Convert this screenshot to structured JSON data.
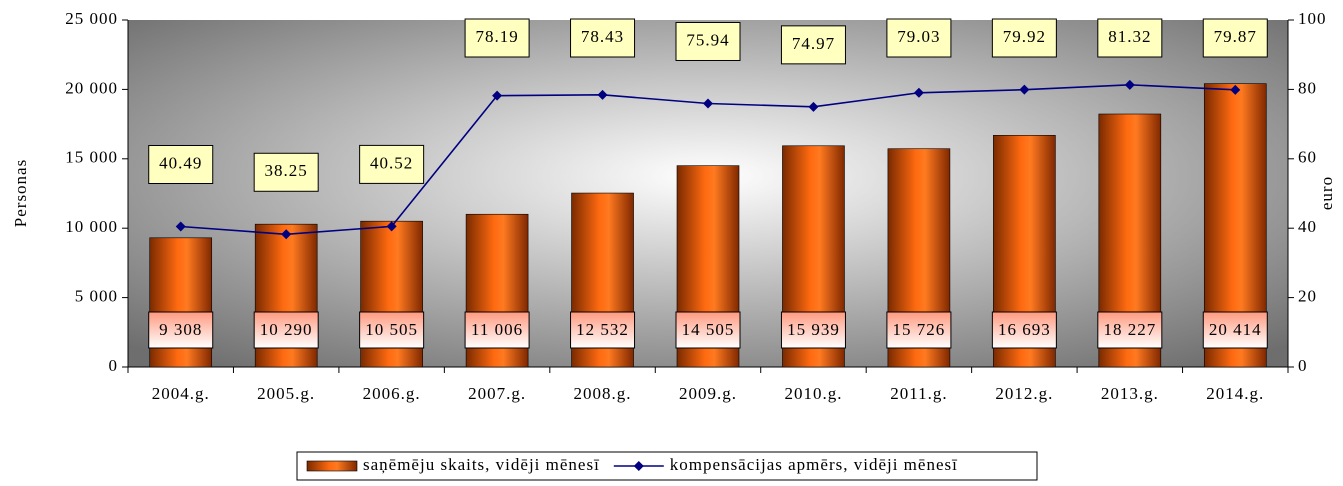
{
  "chart_data": {
    "type": "bar",
    "categories": [
      "2004.g.",
      "2005.g.",
      "2006.g.",
      "2007.g.",
      "2008.g.",
      "2009.g.",
      "2010.g.",
      "2011.g.",
      "2012.g.",
      "2013.g.",
      "2014.g."
    ],
    "ylabel": "Personas",
    "y2label": "euro",
    "ylim": [
      0,
      25000
    ],
    "yticks": [
      0,
      {
        "value": 5000,
        "label": "5 000"
      },
      {
        "value": 10000,
        "label": "10 000"
      },
      {
        "value": 15000,
        "label": "15 000"
      },
      {
        "value": 20000,
        "label": "20 000"
      },
      {
        "value": 25000,
        "label": "25 000"
      }
    ],
    "y2lim": [
      0,
      100
    ],
    "y2ticks": [
      0,
      20,
      40,
      60,
      80,
      100
    ],
    "series": [
      {
        "name": "saņēmēju skaits, vidēji mēnesī",
        "type": "bar",
        "color": "#ff6600",
        "values": [
          9308,
          10290,
          10505,
          11006,
          12532,
          14505,
          15939,
          15726,
          16693,
          18227,
          20414
        ],
        "value_labels": [
          "9 308",
          "10 290",
          "10 505",
          "11 006",
          "12 532",
          "14 505",
          "15 939",
          "15 726",
          "16 693",
          "18 227",
          "20 414"
        ]
      },
      {
        "name": "kompensācijas apmērs, vidēji mēnesī",
        "type": "line",
        "axis": "y2",
        "color": "#000080",
        "values": [
          40.49,
          38.25,
          40.52,
          78.19,
          78.43,
          75.94,
          74.97,
          79.03,
          79.92,
          81.32,
          79.87
        ]
      }
    ],
    "legend": "bottom"
  }
}
